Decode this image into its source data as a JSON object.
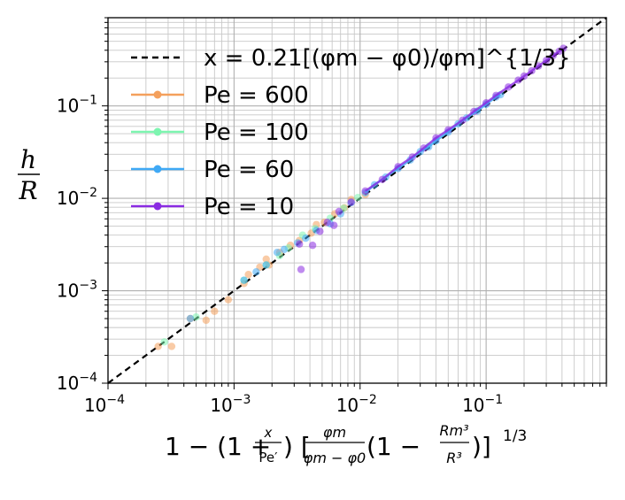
{
  "chart_data": {
    "type": "scatter",
    "xscale": "log",
    "yscale": "log",
    "xlim": [
      0.0001,
      0.9
    ],
    "ylim": [
      0.0001,
      0.9
    ],
    "grid": true,
    "legend_position": "top-left",
    "xlabel": "1 − (1 + x/Pe′)[φm/(φm − φ0)(1 − Rm³/R³)]^{1/3}",
    "ylabel": "h/R",
    "xticks": [
      {
        "value": 0.0001,
        "base": "10",
        "exp": "−4"
      },
      {
        "value": 0.001,
        "base": "10",
        "exp": "−3"
      },
      {
        "value": 0.01,
        "base": "10",
        "exp": "−2"
      },
      {
        "value": 0.1,
        "base": "10",
        "exp": "−1"
      }
    ],
    "yticks": [
      {
        "value": 0.0001,
        "base": "10",
        "exp": "−4"
      },
      {
        "value": 0.001,
        "base": "10",
        "exp": "−3"
      },
      {
        "value": 0.01,
        "base": "10",
        "exp": "−2"
      },
      {
        "value": 0.1,
        "base": "10",
        "exp": "−1"
      }
    ],
    "reference_line": {
      "label": "x = 0.21[(φm − φ0)/φm]^{1/3}",
      "x": [
        0.0001,
        0.9
      ],
      "y": [
        0.0001,
        0.9
      ],
      "color": "#000000",
      "style": "dashed"
    },
    "series": [
      {
        "name": "Pe = 600",
        "color": "#f4a05c",
        "points": [
          [
            0.00025,
            0.00025
          ],
          [
            0.00032,
            0.00025
          ],
          [
            0.00045,
            0.0005
          ],
          [
            0.0006,
            0.00048
          ],
          [
            0.0007,
            0.0006
          ],
          [
            0.0009,
            0.0008
          ],
          [
            0.0012,
            0.0012
          ],
          [
            0.0013,
            0.0015
          ],
          [
            0.0016,
            0.0018
          ],
          [
            0.0018,
            0.0022
          ],
          [
            0.0019,
            0.0019
          ],
          [
            0.0023,
            0.0026
          ],
          [
            0.0028,
            0.0031
          ],
          [
            0.0033,
            0.0035
          ],
          [
            0.0041,
            0.0042
          ],
          [
            0.0045,
            0.0052
          ],
          [
            0.0052,
            0.0055
          ],
          [
            0.0063,
            0.0068
          ],
          [
            0.0075,
            0.0079
          ],
          [
            0.0085,
            0.0097
          ],
          [
            0.011,
            0.011
          ]
        ]
      },
      {
        "name": "Pe = 100",
        "color": "#7df5b0",
        "points": [
          [
            0.00028,
            0.00028
          ],
          [
            0.0005,
            0.00052
          ],
          [
            0.0012,
            0.0013
          ],
          [
            0.0018,
            0.0019
          ],
          [
            0.0023,
            0.0024
          ],
          [
            0.0027,
            0.0029
          ],
          [
            0.0035,
            0.004
          ],
          [
            0.0044,
            0.0047
          ],
          [
            0.0058,
            0.0061
          ],
          [
            0.0074,
            0.0078
          ],
          [
            0.0096,
            0.0102
          ]
        ]
      },
      {
        "name": "Pe = 60",
        "color": "#3fa9f5",
        "points": [
          [
            0.00045,
            0.0005
          ],
          [
            0.0012,
            0.0013
          ],
          [
            0.0015,
            0.0016
          ],
          [
            0.0018,
            0.0019
          ],
          [
            0.0022,
            0.0026
          ],
          [
            0.0025,
            0.0028
          ],
          [
            0.0032,
            0.0033
          ],
          [
            0.0037,
            0.0037
          ],
          [
            0.0045,
            0.0045
          ],
          [
            0.0058,
            0.0053
          ],
          [
            0.007,
            0.0068
          ],
          [
            0.0085,
            0.009
          ],
          [
            0.011,
            0.0115
          ],
          [
            0.013,
            0.014
          ],
          [
            0.016,
            0.017
          ],
          [
            0.02,
            0.021
          ],
          [
            0.025,
            0.026
          ],
          [
            0.03,
            0.032
          ],
          [
            0.035,
            0.036
          ],
          [
            0.04,
            0.042
          ],
          [
            0.05,
            0.052
          ],
          [
            0.06,
            0.064
          ],
          [
            0.07,
            0.074
          ],
          [
            0.085,
            0.088
          ],
          [
            0.1,
            0.104
          ],
          [
            0.12,
            0.125
          ],
          [
            0.13,
            0.132
          ]
        ]
      },
      {
        "name": "Pe = 10",
        "color": "#8a2be2",
        "points": [
          [
            0.0033,
            0.0032
          ],
          [
            0.0034,
            0.0017
          ],
          [
            0.0042,
            0.0031
          ],
          [
            0.0048,
            0.0044
          ],
          [
            0.0055,
            0.0055
          ],
          [
            0.0062,
            0.0051
          ],
          [
            0.0068,
            0.0072
          ],
          [
            0.0085,
            0.0091
          ],
          [
            0.011,
            0.012
          ],
          [
            0.015,
            0.016
          ],
          [
            0.02,
            0.022
          ],
          [
            0.026,
            0.028
          ],
          [
            0.032,
            0.035
          ],
          [
            0.04,
            0.045
          ],
          [
            0.05,
            0.055
          ],
          [
            0.065,
            0.07
          ],
          [
            0.08,
            0.087
          ],
          [
            0.1,
            0.108
          ],
          [
            0.12,
            0.13
          ],
          [
            0.15,
            0.16
          ],
          [
            0.18,
            0.19
          ],
          [
            0.2,
            0.21
          ],
          [
            0.23,
            0.24
          ],
          [
            0.26,
            0.27
          ],
          [
            0.3,
            0.31
          ],
          [
            0.34,
            0.35
          ],
          [
            0.38,
            0.39
          ],
          [
            0.41,
            0.42
          ]
        ]
      }
    ]
  }
}
